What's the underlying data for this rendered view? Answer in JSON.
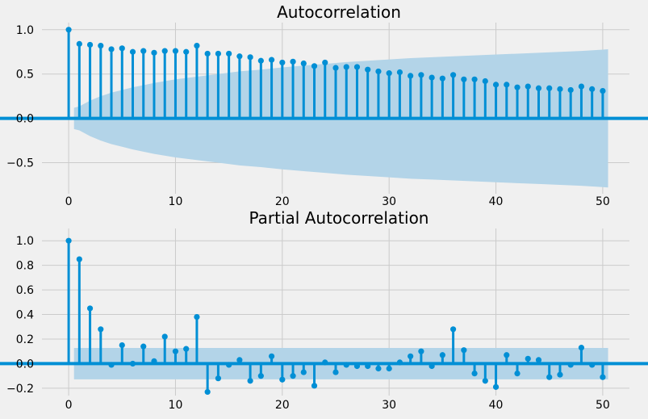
{
  "colors": {
    "background": "#f0f0f0",
    "grid": "#cbcbcb",
    "stem": "#008fd5",
    "band": "#b3d4e8"
  },
  "chart_data": [
    {
      "type": "stem",
      "title": "Autocorrelation",
      "grid": true,
      "xlim": [
        -2.5,
        52.5
      ],
      "ylim": [
        -0.85,
        1.08
      ],
      "xticks": [
        0,
        10,
        20,
        30,
        40,
        50
      ],
      "yticks": [
        1.0,
        0.5,
        0.0,
        -0.5
      ],
      "ytick_labels": [
        "1.0",
        "0.5",
        "0.0",
        "−0.5"
      ],
      "x": [
        0,
        1,
        2,
        3,
        4,
        5,
        6,
        7,
        8,
        9,
        10,
        11,
        12,
        13,
        14,
        15,
        16,
        17,
        18,
        19,
        20,
        21,
        22,
        23,
        24,
        25,
        26,
        27,
        28,
        29,
        30,
        31,
        32,
        33,
        34,
        35,
        36,
        37,
        38,
        39,
        40,
        41,
        42,
        43,
        44,
        45,
        46,
        47,
        48,
        49,
        50
      ],
      "values": [
        1.0,
        0.84,
        0.83,
        0.82,
        0.78,
        0.79,
        0.75,
        0.76,
        0.74,
        0.76,
        0.76,
        0.75,
        0.82,
        0.73,
        0.73,
        0.73,
        0.7,
        0.69,
        0.65,
        0.66,
        0.63,
        0.64,
        0.62,
        0.59,
        0.63,
        0.57,
        0.58,
        0.58,
        0.55,
        0.53,
        0.51,
        0.52,
        0.48,
        0.49,
        0.46,
        0.45,
        0.49,
        0.44,
        0.44,
        0.42,
        0.38,
        0.38,
        0.35,
        0.36,
        0.34,
        0.34,
        0.33,
        0.32,
        0.36,
        0.33,
        0.31
      ],
      "confidence_band": {
        "x": [
          0.5,
          1,
          2,
          3,
          4,
          5,
          6,
          7,
          8,
          10,
          12,
          14,
          16,
          18,
          20,
          22,
          24,
          26,
          28,
          30,
          32,
          34,
          36,
          38,
          40,
          42,
          44,
          46,
          48,
          50,
          50.5
        ],
        "half_width": [
          0.12,
          0.135,
          0.2,
          0.25,
          0.29,
          0.32,
          0.35,
          0.375,
          0.4,
          0.44,
          0.47,
          0.5,
          0.53,
          0.55,
          0.575,
          0.595,
          0.615,
          0.635,
          0.65,
          0.665,
          0.68,
          0.69,
          0.7,
          0.71,
          0.72,
          0.73,
          0.74,
          0.75,
          0.76,
          0.775,
          0.78
        ]
      }
    },
    {
      "type": "stem",
      "title": "Partial Autocorrelation",
      "grid": true,
      "xlim": [
        -2.5,
        52.5
      ],
      "ylim": [
        -0.26,
        1.1
      ],
      "xticks": [
        0,
        10,
        20,
        30,
        40,
        50
      ],
      "yticks": [
        1.0,
        0.8,
        0.6,
        0.4,
        0.2,
        0.0,
        -0.2
      ],
      "ytick_labels": [
        "1.0",
        "0.8",
        "0.6",
        "0.4",
        "0.2",
        "0.0",
        "−0.2"
      ],
      "x": [
        0,
        1,
        2,
        3,
        4,
        5,
        6,
        7,
        8,
        9,
        10,
        11,
        12,
        13,
        14,
        15,
        16,
        17,
        18,
        19,
        20,
        21,
        22,
        23,
        24,
        25,
        26,
        27,
        28,
        29,
        30,
        31,
        32,
        33,
        34,
        35,
        36,
        37,
        38,
        39,
        40,
        41,
        42,
        43,
        44,
        45,
        46,
        47,
        48,
        49,
        50
      ],
      "values": [
        1.0,
        0.85,
        0.45,
        0.28,
        -0.01,
        0.15,
        0.0,
        0.14,
        0.02,
        0.22,
        0.1,
        0.12,
        0.38,
        -0.23,
        -0.12,
        -0.01,
        0.03,
        -0.14,
        -0.1,
        0.06,
        -0.13,
        -0.1,
        -0.07,
        -0.18,
        0.01,
        -0.07,
        -0.01,
        -0.02,
        -0.02,
        -0.04,
        -0.04,
        0.01,
        0.06,
        0.1,
        -0.02,
        0.07,
        0.28,
        0.11,
        -0.08,
        -0.14,
        -0.19,
        0.07,
        -0.08,
        0.04,
        0.03,
        -0.11,
        -0.09,
        -0.01,
        0.13,
        -0.01,
        -0.11
      ],
      "confidence_band": {
        "x": [
          0.5,
          50.5
        ],
        "half_width": [
          0.128,
          0.128
        ]
      }
    }
  ]
}
